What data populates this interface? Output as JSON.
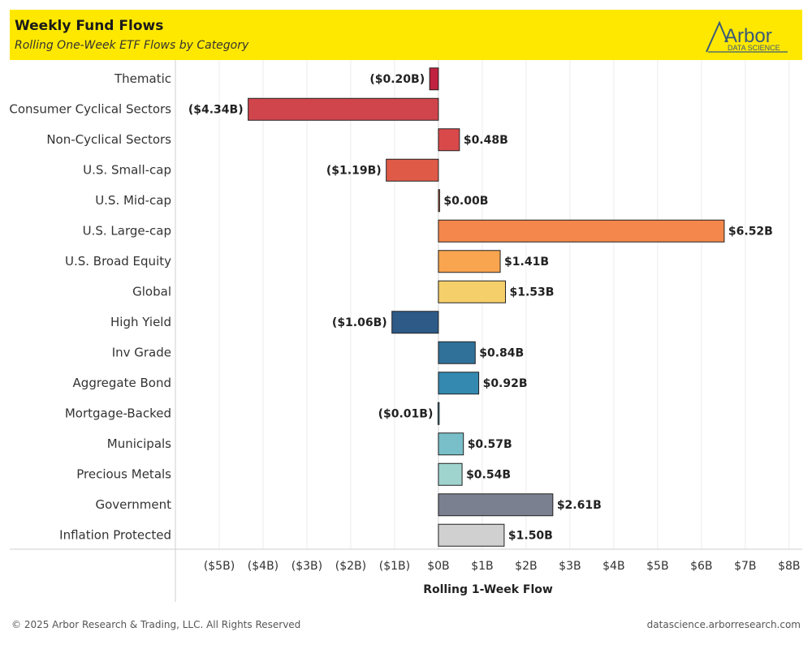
{
  "header": {
    "title": "Weekly Fund Flows",
    "subtitle": "Rolling One-Week ETF Flows by Category",
    "logo_text": "Arbor",
    "logo_subtext": "DATA SCIENCE"
  },
  "footer": {
    "copyright": "© 2025 Arbor Research & Trading, LLC. All Rights Reserved",
    "url": "datascience.arborresearch.com"
  },
  "colors": {
    "header_bg": "#ffe800",
    "logo": "#3a5a78"
  },
  "chart_data": {
    "type": "bar",
    "orientation": "horizontal",
    "xlabel": "Rolling 1-Week Flow",
    "ylabel": "",
    "xlim": [
      -6.0,
      8.3
    ],
    "x_ticks": [
      -5,
      -4,
      -3,
      -2,
      -1,
      0,
      1,
      2,
      3,
      4,
      5,
      6,
      7,
      8
    ],
    "x_tick_labels": [
      "($5B)",
      "($4B)",
      "($3B)",
      "($2B)",
      "($1B)",
      "$0B",
      "$1B",
      "$2B",
      "$3B",
      "$4B",
      "$5B",
      "$6B",
      "$7B",
      "$8B"
    ],
    "grid": "vertical",
    "categories": [
      "Thematic",
      "Consumer Cyclical Sectors",
      "Non-Cyclical Sectors",
      "U.S. Small-cap",
      "U.S. Mid-cap",
      "U.S. Large-cap",
      "U.S. Broad Equity",
      "Global",
      "High Yield",
      "Inv Grade",
      "Aggregate Bond",
      "Mortgage-Backed",
      "Municipals",
      "Precious Metals",
      "Government",
      "Inflation Protected"
    ],
    "values": [
      -0.2,
      -4.34,
      0.48,
      -1.19,
      0.0,
      6.52,
      1.41,
      1.53,
      -1.06,
      0.84,
      0.92,
      -0.01,
      0.57,
      0.54,
      2.61,
      1.5
    ],
    "value_labels": [
      "($0.20B)",
      "($4.34B)",
      "$0.48B",
      "($1.19B)",
      "$0.00B",
      "$6.52B",
      "$1.41B",
      "$1.53B",
      "($1.06B)",
      "$0.84B",
      "$0.92B",
      "($0.01B)",
      "$0.57B",
      "$0.54B",
      "$2.61B",
      "$1.50B"
    ],
    "bar_colors": [
      "#c0223f",
      "#d0454c",
      "#d9494a",
      "#e05a48",
      "#e87040",
      "#f4874b",
      "#f9a44f",
      "#f4cf6a",
      "#2d5a87",
      "#2f7199",
      "#3389b0",
      "#4aa3bf",
      "#79bfc9",
      "#9fd3ce",
      "#7a8090",
      "#d0d0d0"
    ]
  }
}
